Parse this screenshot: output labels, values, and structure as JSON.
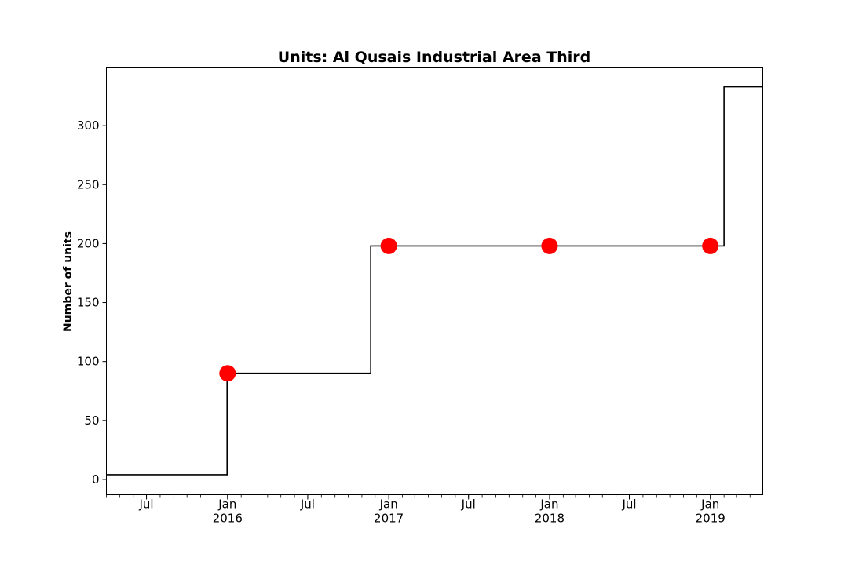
{
  "chart_data": {
    "type": "line",
    "step": "post",
    "title": "Units: Al Qusais Industrial Area Third",
    "xlabel": "",
    "ylabel": "Number of units",
    "xlim": [
      "2015-04-01",
      "2019-04-30"
    ],
    "ylim": [
      -13,
      349
    ],
    "grid": false,
    "legend": false,
    "y_ticks": [
      0,
      50,
      100,
      150,
      200,
      250,
      300
    ],
    "x_major_ticks": [
      {
        "date": "2015-07-01",
        "label": "Jul"
      },
      {
        "date": "2016-01-01",
        "label": "Jan\n2016"
      },
      {
        "date": "2016-07-01",
        "label": "Jul"
      },
      {
        "date": "2017-01-01",
        "label": "Jan\n2017"
      },
      {
        "date": "2017-07-01",
        "label": "Jul"
      },
      {
        "date": "2018-01-01",
        "label": "Jan\n2018"
      },
      {
        "date": "2018-07-01",
        "label": "Jul"
      },
      {
        "date": "2019-01-01",
        "label": "Jan\n2019"
      }
    ],
    "series": [
      {
        "kind": "step",
        "color": "#000000",
        "x": [
          "2015-04-01",
          "2015-12-31",
          "2016-11-21",
          "2019-02-01",
          "2019-04-30"
        ],
        "y": [
          4,
          90,
          198,
          333,
          333
        ]
      },
      {
        "kind": "markers",
        "color": "#ff0000",
        "x": [
          "2016-01-01",
          "2017-01-01",
          "2018-01-01",
          "2019-01-01"
        ],
        "y": [
          90,
          198,
          198,
          198
        ]
      }
    ]
  }
}
